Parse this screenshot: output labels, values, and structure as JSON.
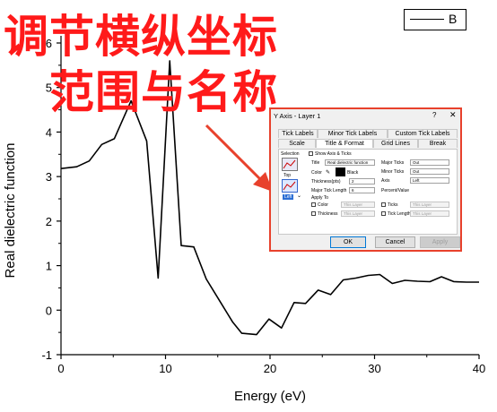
{
  "overlay": {
    "line1": "调节横纵坐标",
    "line2": "范围与名称"
  },
  "chart_data": {
    "type": "line",
    "xlabel": "Energy (eV)",
    "ylabel": "Real dielectric function",
    "xlim": [
      0,
      40
    ],
    "ylim": [
      -1,
      6
    ],
    "xticks": [
      0,
      10,
      20,
      30,
      40
    ],
    "yticks": [
      -1,
      0,
      1,
      2,
      3,
      4,
      5,
      6
    ],
    "legend": {
      "position": "top-right",
      "entries": [
        "B"
      ]
    },
    "series": [
      {
        "name": "B",
        "color": "#000000",
        "x": [
          0,
          1.5,
          2.7,
          3.9,
          5.1,
          6.7,
          8.2,
          9.3,
          10.4,
          11.5,
          12.7,
          13.9,
          15.2,
          16.4,
          17.3,
          18.7,
          19.9,
          21.1,
          22.3,
          23.4,
          24.6,
          25.8,
          27.0,
          28.2,
          29.4,
          30.5,
          31.7,
          32.9,
          34.1,
          35.3,
          36.4,
          37.6,
          38.8,
          40.0
        ],
        "y": [
          3.18,
          3.22,
          3.35,
          3.72,
          3.85,
          4.7,
          3.8,
          0.72,
          5.6,
          1.45,
          1.42,
          0.7,
          0.2,
          -0.26,
          -0.52,
          -0.55,
          -0.2,
          -0.4,
          0.17,
          0.15,
          0.45,
          0.35,
          0.68,
          0.72,
          0.78,
          0.8,
          0.6,
          0.67,
          0.65,
          0.64,
          0.75,
          0.64,
          0.63,
          0.63
        ]
      }
    ]
  },
  "dialog": {
    "title": "Y Axis - Layer 1",
    "help": "?",
    "close": "✕",
    "tabs_row1": [
      "Tick Labels",
      "Minor Tick Labels",
      "Custom Tick Labels"
    ],
    "tabs_row2": [
      "Scale",
      "Title & Format",
      "Grid Lines",
      "Break"
    ],
    "selection_label": "Selection",
    "selection_items": [
      "Top",
      "Left"
    ],
    "show_axis_label": "Show Axis & Ticks",
    "title_label": "Title",
    "title_value": "Real dielectric function",
    "color_label": "Color",
    "color_value": "Black",
    "thickness_label": "Thickness(pts)",
    "thickness_value": "2",
    "major_tick_length_label": "Major Tick Length",
    "major_tick_length_value": "6",
    "major_ticks_label": "Major Ticks",
    "major_ticks_value": "Out",
    "minor_ticks_label": "Minor Ticks",
    "minor_ticks_value": "Out",
    "axis_label": "Axis",
    "axis_value": "Left",
    "percent_value_label": "Percent/Value",
    "apply_to_label": "Apply To",
    "apply_color_label": "Color",
    "apply_color_value": "This Layer",
    "apply_ticks_label": "Ticks",
    "apply_ticks_value": "This Layer",
    "apply_thickness_label": "Thickness",
    "apply_thickness_value": "This Layer",
    "apply_ticklength_label": "Tick Length",
    "apply_ticklength_value": "This Layer",
    "ok": "OK",
    "cancel": "Cancel",
    "apply": "Apply"
  },
  "arrow_color": "#e8412c",
  "overlay_color": "#ff1a1a"
}
